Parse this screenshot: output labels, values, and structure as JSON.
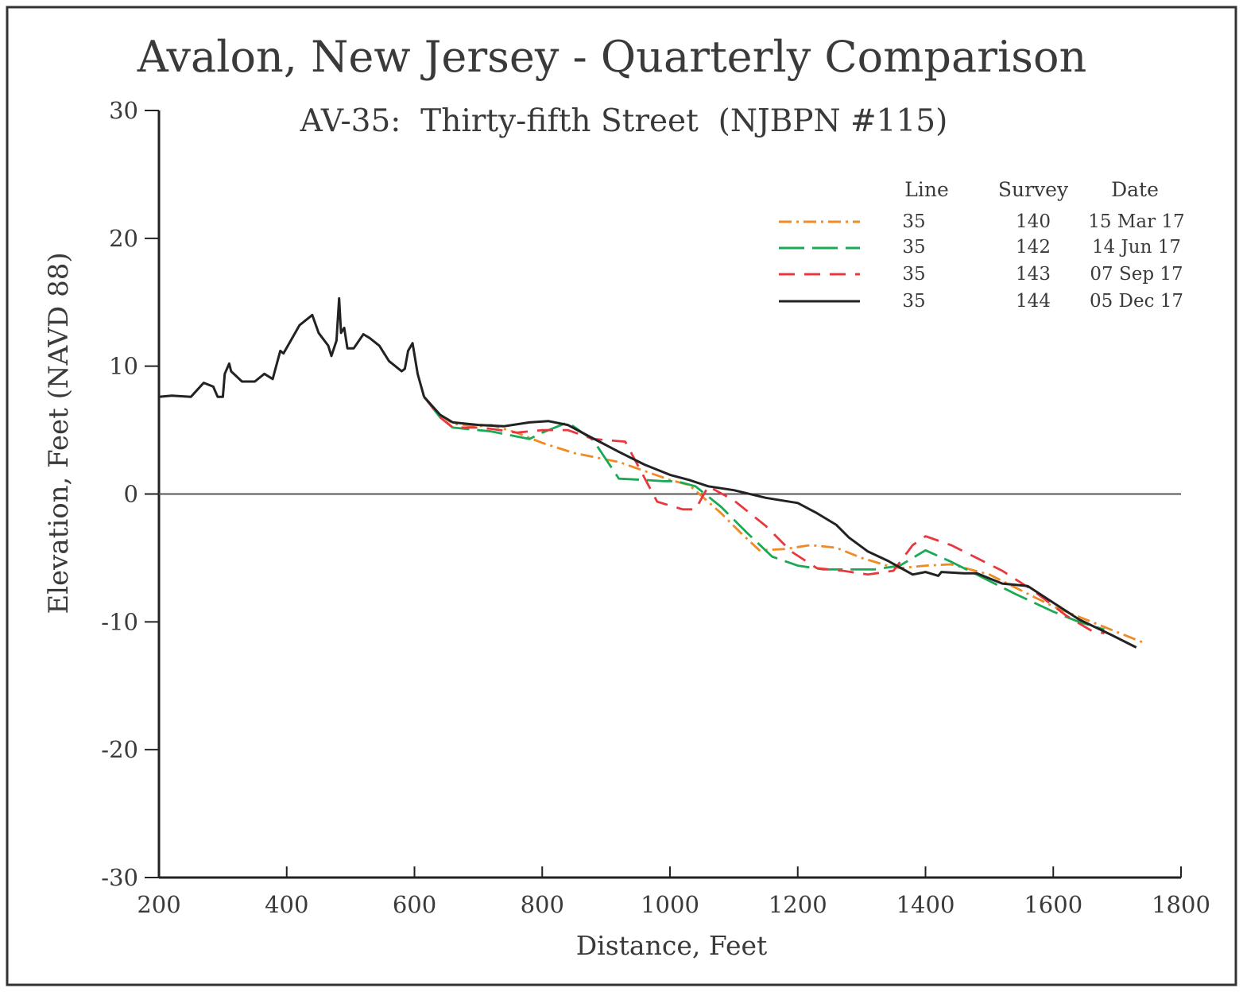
{
  "chart_data": {
    "type": "line",
    "title": "Avalon, New Jersey - Quarterly Comparison",
    "subtitle": "AV-35:  Thirty-fifth Street  (NJBPN #115)",
    "xlabel": "Distance, Feet",
    "ylabel": "Elevation, Feet (NAVD 88)",
    "xlim": [
      200,
      1800
    ],
    "ylim": [
      -30,
      30
    ],
    "x_ticks": [
      200,
      400,
      600,
      800,
      1000,
      1200,
      1400,
      1600,
      1800
    ],
    "y_ticks": [
      30,
      20,
      10,
      0,
      -10,
      -20,
      -30
    ],
    "zero_line": true,
    "legend": {
      "placement": "top-right",
      "headers": [
        "Line",
        "Survey",
        "Date"
      ],
      "entries": [
        {
          "line": "35",
          "survey": "140",
          "date": "15 Mar 17",
          "color": "#f08a24",
          "style": "dashdot"
        },
        {
          "line": "35",
          "survey": "142",
          "date": "14 Jun 17",
          "color": "#1aaa55",
          "style": "longdash"
        },
        {
          "line": "35",
          "survey": "143",
          "date": "07 Sep 17",
          "color": "#e8383d",
          "style": "dash"
        },
        {
          "line": "35",
          "survey": "144",
          "date": "05 Dec 17",
          "color": "#222222",
          "style": "solid"
        }
      ]
    },
    "dune_profile": [
      [
        200,
        7.6
      ],
      [
        220,
        7.7
      ],
      [
        250,
        7.6
      ],
      [
        270,
        8.7
      ],
      [
        285,
        8.4
      ],
      [
        292,
        7.6
      ],
      [
        300,
        7.6
      ],
      [
        303,
        9.4
      ],
      [
        310,
        10.2
      ],
      [
        313,
        9.6
      ],
      [
        330,
        8.8
      ],
      [
        350,
        8.8
      ],
      [
        365,
        9.4
      ],
      [
        378,
        9.0
      ],
      [
        390,
        11.2
      ],
      [
        395,
        11.0
      ],
      [
        420,
        13.2
      ],
      [
        440,
        14.0
      ],
      [
        450,
        12.6
      ],
      [
        465,
        11.6
      ],
      [
        470,
        10.8
      ],
      [
        478,
        12.0
      ],
      [
        482,
        15.3
      ],
      [
        485,
        12.6
      ],
      [
        490,
        13.0
      ],
      [
        495,
        11.4
      ],
      [
        505,
        11.4
      ],
      [
        520,
        12.5
      ],
      [
        530,
        12.2
      ],
      [
        545,
        11.6
      ],
      [
        560,
        10.4
      ],
      [
        580,
        9.6
      ],
      [
        585,
        9.8
      ],
      [
        590,
        11.2
      ],
      [
        597,
        11.8
      ],
      [
        605,
        9.4
      ],
      [
        615,
        7.6
      ]
    ],
    "series": [
      {
        "values": [
          [
            615,
            7.6
          ],
          [
            640,
            6.2
          ],
          [
            660,
            5.5
          ],
          [
            700,
            5.3
          ],
          [
            720,
            5.4
          ],
          [
            760,
            4.8
          ],
          [
            800,
            4.0
          ],
          [
            850,
            3.2
          ],
          [
            920,
            2.5
          ],
          [
            960,
            1.8
          ],
          [
            1000,
            1.1
          ],
          [
            1030,
            0.7
          ],
          [
            1080,
            -1.5
          ],
          [
            1110,
            -3.0
          ],
          [
            1140,
            -4.4
          ],
          [
            1180,
            -4.3
          ],
          [
            1220,
            -4.0
          ],
          [
            1260,
            -4.2
          ],
          [
            1300,
            -5.0
          ],
          [
            1340,
            -5.6
          ],
          [
            1360,
            -5.8
          ],
          [
            1400,
            -5.6
          ],
          [
            1440,
            -5.5
          ],
          [
            1500,
            -6.3
          ],
          [
            1560,
            -7.8
          ],
          [
            1600,
            -8.8
          ],
          [
            1660,
            -10.0
          ],
          [
            1700,
            -10.8
          ],
          [
            1740,
            -11.6
          ]
        ]
      },
      {
        "values": [
          [
            615,
            7.6
          ],
          [
            640,
            6.0
          ],
          [
            660,
            5.2
          ],
          [
            700,
            5.0
          ],
          [
            720,
            4.9
          ],
          [
            760,
            4.5
          ],
          [
            780,
            4.3
          ],
          [
            800,
            4.8
          ],
          [
            840,
            5.6
          ],
          [
            880,
            4.2
          ],
          [
            920,
            1.2
          ],
          [
            960,
            1.1
          ],
          [
            990,
            1.0
          ],
          [
            1010,
            1.0
          ],
          [
            1040,
            0.6
          ],
          [
            1080,
            -1.0
          ],
          [
            1120,
            -3.0
          ],
          [
            1160,
            -4.9
          ],
          [
            1200,
            -5.6
          ],
          [
            1240,
            -5.9
          ],
          [
            1280,
            -5.9
          ],
          [
            1320,
            -5.9
          ],
          [
            1360,
            -5.6
          ],
          [
            1400,
            -4.4
          ],
          [
            1440,
            -5.3
          ],
          [
            1480,
            -6.3
          ],
          [
            1540,
            -7.8
          ],
          [
            1600,
            -9.2
          ],
          [
            1640,
            -10.0
          ],
          [
            1680,
            -10.6
          ]
        ]
      },
      {
        "values": [
          [
            615,
            7.6
          ],
          [
            640,
            6.0
          ],
          [
            660,
            5.2
          ],
          [
            700,
            5.2
          ],
          [
            720,
            5.1
          ],
          [
            760,
            4.8
          ],
          [
            800,
            5.0
          ],
          [
            840,
            5.0
          ],
          [
            880,
            4.3
          ],
          [
            930,
            4.1
          ],
          [
            980,
            -0.6
          ],
          [
            1020,
            -1.2
          ],
          [
            1040,
            -1.2
          ],
          [
            1060,
            0.6
          ],
          [
            1100,
            -0.5
          ],
          [
            1150,
            -2.5
          ],
          [
            1190,
            -4.5
          ],
          [
            1230,
            -5.8
          ],
          [
            1270,
            -6.0
          ],
          [
            1310,
            -6.3
          ],
          [
            1350,
            -6.0
          ],
          [
            1380,
            -4.0
          ],
          [
            1400,
            -3.3
          ],
          [
            1440,
            -4.0
          ],
          [
            1480,
            -5.0
          ],
          [
            1520,
            -6.0
          ],
          [
            1570,
            -7.6
          ],
          [
            1620,
            -9.5
          ],
          [
            1660,
            -10.7
          ],
          [
            1680,
            -10.9
          ]
        ]
      },
      {
        "values": [
          [
            615,
            7.6
          ],
          [
            640,
            6.2
          ],
          [
            660,
            5.6
          ],
          [
            700,
            5.4
          ],
          [
            740,
            5.3
          ],
          [
            780,
            5.6
          ],
          [
            810,
            5.7
          ],
          [
            840,
            5.4
          ],
          [
            870,
            4.6
          ],
          [
            920,
            3.3
          ],
          [
            960,
            2.3
          ],
          [
            1000,
            1.5
          ],
          [
            1030,
            1.1
          ],
          [
            1060,
            0.6
          ],
          [
            1100,
            0.3
          ],
          [
            1150,
            -0.3
          ],
          [
            1200,
            -0.7
          ],
          [
            1230,
            -1.5
          ],
          [
            1260,
            -2.4
          ],
          [
            1280,
            -3.4
          ],
          [
            1310,
            -4.5
          ],
          [
            1340,
            -5.2
          ],
          [
            1380,
            -6.3
          ],
          [
            1400,
            -6.1
          ],
          [
            1420,
            -6.4
          ],
          [
            1425,
            -6.1
          ],
          [
            1460,
            -6.2
          ],
          [
            1480,
            -6.2
          ],
          [
            1520,
            -7.0
          ],
          [
            1560,
            -7.2
          ],
          [
            1600,
            -8.5
          ],
          [
            1640,
            -9.8
          ],
          [
            1690,
            -11.0
          ],
          [
            1730,
            -12.0
          ]
        ]
      }
    ]
  }
}
